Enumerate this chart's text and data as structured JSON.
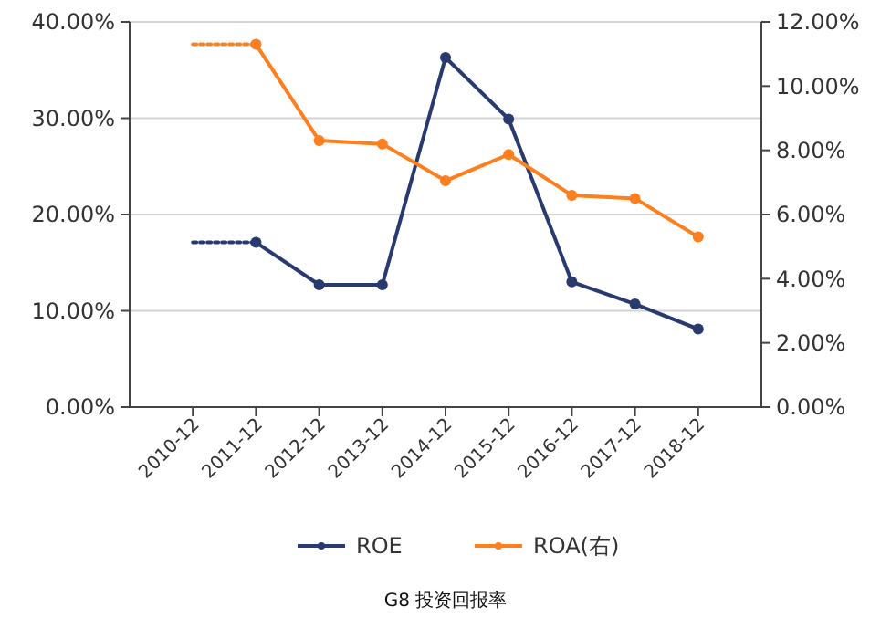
{
  "chart_data": {
    "type": "line",
    "categories": [
      "2010-12",
      "2011-12",
      "2012-12",
      "2013-12",
      "2014-12",
      "2015-12",
      "2016-12",
      "2017-12",
      "2018-12"
    ],
    "series": [
      {
        "name": "ROE",
        "color": "#283a6e",
        "values": [
          null,
          17.1,
          12.7,
          12.7,
          36.3,
          29.9,
          13.0,
          10.7,
          8.1
        ],
        "marker": "circle"
      },
      {
        "name": "ROA(右)",
        "color": "#ff7f1e",
        "axis": "y2",
        "values": [
          null,
          11.3,
          8.3,
          8.2,
          7.05,
          7.87,
          6.6,
          6.5,
          5.3
        ],
        "marker": "circle"
      },
      {
        "color": "#283a6e",
        "values": [
          17.1,
          17.1,
          null,
          null,
          null,
          null,
          null,
          null,
          null
        ],
        "line_style": "dotted",
        "marker": "none"
      },
      {
        "color": "#ff7f1e",
        "axis": "y2",
        "values": [
          11.3,
          11.3,
          null,
          null,
          null,
          null,
          null,
          null,
          null
        ],
        "line_style": "dotted",
        "marker": "none"
      }
    ],
    "ylim": [
      0,
      40
    ],
    "yticks": [
      {
        "value": 0,
        "label": "0.00%"
      },
      {
        "value": 10,
        "label": "10.00%"
      },
      {
        "value": 20,
        "label": "20.00%"
      },
      {
        "value": 30,
        "label": "30.00%"
      },
      {
        "value": 40,
        "label": "40.00%"
      }
    ],
    "y2lim": [
      0,
      12
    ],
    "y2ticks": [
      {
        "value": 0,
        "label": "0.00%"
      },
      {
        "value": 2,
        "label": "2.00%"
      },
      {
        "value": 4,
        "label": "4.00%"
      },
      {
        "value": 6,
        "label": "6.00%"
      },
      {
        "value": 8,
        "label": "8.00%"
      },
      {
        "value": 10,
        "label": "10.00%"
      },
      {
        "value": 12,
        "label": "12.00%"
      }
    ],
    "grid": "y",
    "legend": "bottom",
    "line_style": "solid",
    "annotations": [
      "G8 投资回报率"
    ]
  }
}
